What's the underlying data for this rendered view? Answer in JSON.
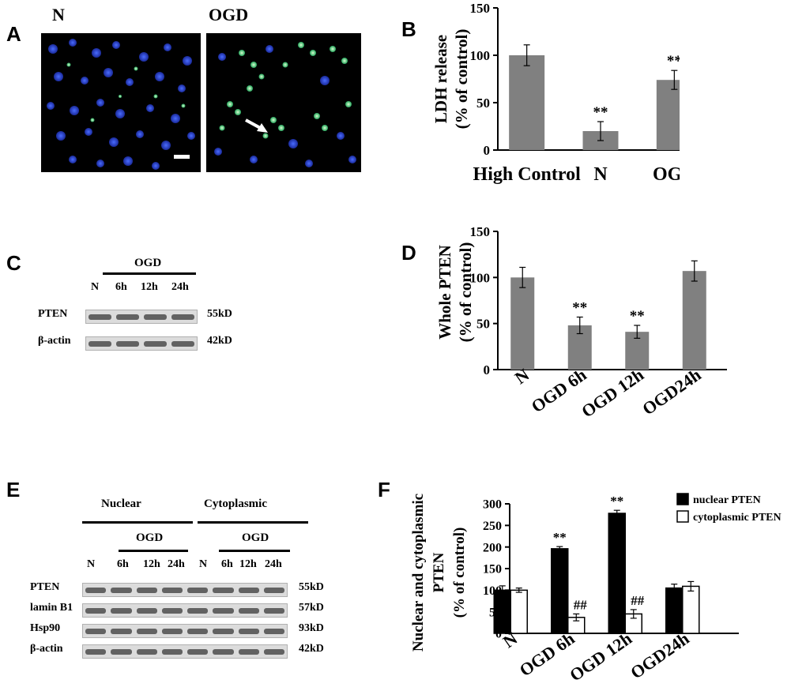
{
  "panel_letters": {
    "A": "A",
    "B": "B",
    "C": "C",
    "D": "D",
    "E": "E",
    "F": "F"
  },
  "panelA": {
    "label_left": "N",
    "label_right": "OGD"
  },
  "panelC": {
    "treatment": "OGD",
    "lanes": [
      "N",
      "6h",
      "12h",
      "24h"
    ],
    "bands": [
      {
        "name": "PTEN",
        "kd": "55kD"
      },
      {
        "name": "β-actin",
        "kd": "42kD"
      }
    ]
  },
  "panelE": {
    "group_nuclear": "Nuclear",
    "group_cytoplasmic": "Cytoplasmic",
    "treatment": "OGD",
    "lanes": [
      "N",
      "6h",
      "12h",
      "24h",
      "N",
      "6h",
      "12h",
      "24h"
    ],
    "bands": [
      {
        "name": "PTEN",
        "kd": "55kD"
      },
      {
        "name": "lamin B1",
        "kd": "57kD"
      },
      {
        "name": "Hsp90",
        "kd": "93kD"
      },
      {
        "name": "β-actin",
        "kd": "42kD"
      }
    ]
  },
  "chart_data": [
    {
      "panel": "B",
      "type": "bar",
      "categories": [
        "High Control",
        "N",
        "OGD"
      ],
      "values": [
        100,
        20,
        74
      ],
      "errors": [
        11,
        10,
        10
      ],
      "annotations": [
        "",
        "**",
        "**"
      ],
      "ylabel": "LDH release (% of control)",
      "ylim": [
        0,
        150
      ],
      "yticks": [
        0,
        50,
        100,
        150
      ],
      "bar_color": "#808080"
    },
    {
      "panel": "D",
      "type": "bar",
      "categories": [
        "N",
        "OGD 6h",
        "OGD 12h",
        "OGD24h"
      ],
      "values": [
        100,
        48,
        41,
        107
      ],
      "errors": [
        11,
        9,
        7,
        11
      ],
      "annotations": [
        "",
        "**",
        "**",
        ""
      ],
      "ylabel": "Whole PTEN (% of control)",
      "ylim": [
        0,
        150
      ],
      "yticks": [
        0,
        50,
        100,
        150
      ],
      "bar_color": "#808080"
    },
    {
      "panel": "F",
      "type": "bar",
      "categories": [
        "N",
        "OGD 6h",
        "OGD 12h",
        "OGD24h"
      ],
      "series": [
        {
          "name": "nuclear PTEN",
          "values": [
            100,
            196,
            278,
            105
          ],
          "errors": [
            10,
            5,
            7,
            9
          ],
          "annotations": [
            "",
            "**",
            "**",
            ""
          ],
          "color": "#000000"
        },
        {
          "name": "cytoplasmic PTEN",
          "values": [
            100,
            37,
            45,
            109
          ],
          "errors": [
            5,
            8,
            10,
            11
          ],
          "annotations": [
            "",
            "##",
            "##",
            ""
          ],
          "color": "#ffffff"
        }
      ],
      "ylabel": "Nuclear and cytoplasmic PTEN (% of control)",
      "ylim": [
        0,
        300
      ],
      "yticks": [
        0,
        50,
        100,
        150,
        200,
        250,
        300
      ],
      "legend_position": "top-right"
    }
  ]
}
